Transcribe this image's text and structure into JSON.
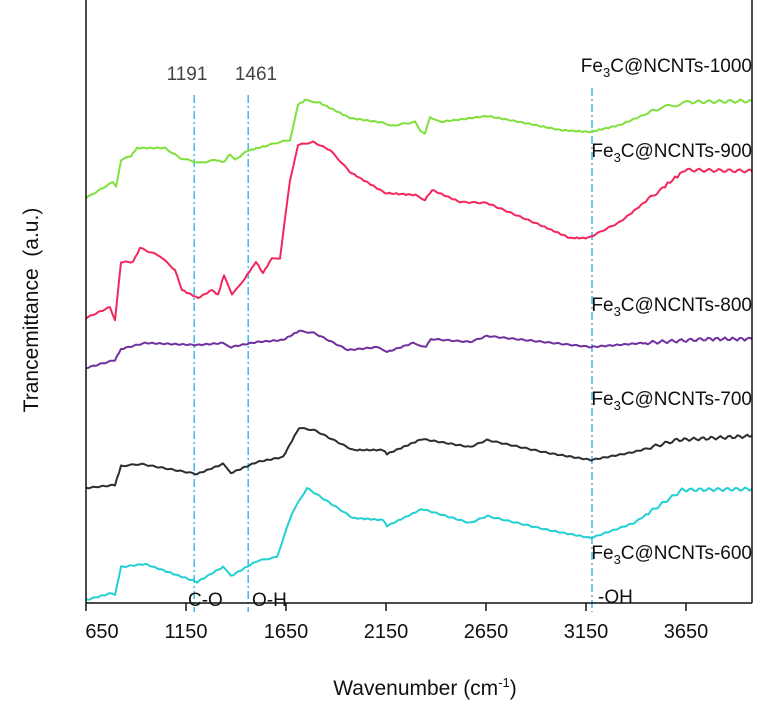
{
  "chart_data": {
    "type": "line",
    "title": "",
    "xlabel": "Wavenumber (cm",
    "xlabel_sup": "-1",
    "xlabel_close": ")",
    "ylabel": "Trancemittance  (a.u.)",
    "xlim": [
      650,
      3980
    ],
    "ylim": [
      0,
      595
    ],
    "xticks": [
      650,
      1150,
      1650,
      2150,
      2650,
      3150,
      3650
    ],
    "yticks": [],
    "grid": false,
    "reference_lines": [
      {
        "x": 1191,
        "label": "1191",
        "color": "#3ab8e6"
      },
      {
        "x": 1461,
        "label": "1461",
        "color": "#3ab8e6"
      },
      {
        "x": 3180,
        "label": "",
        "color": "#3ab8e6"
      }
    ],
    "annotations": [
      "C-O",
      "O-H",
      "-OH"
    ],
    "series": [
      {
        "name": "Fe3C@NCNTs-1000",
        "label_pre": "Fe",
        "label_sub": "3",
        "label_post": "C@NCNTs-1000",
        "color": "#7fe03c",
        "points": [
          [
            650,
            405
          ],
          [
            785,
            421
          ],
          [
            800,
            416
          ],
          [
            825,
            443
          ],
          [
            875,
            447
          ],
          [
            905,
            455
          ],
          [
            1045,
            455
          ],
          [
            1120,
            445
          ],
          [
            1220,
            440
          ],
          [
            1295,
            443
          ],
          [
            1340,
            441
          ],
          [
            1370,
            449
          ],
          [
            1395,
            443
          ],
          [
            1455,
            452
          ],
          [
            1545,
            457
          ],
          [
            1620,
            461
          ],
          [
            1670,
            463
          ],
          [
            1710,
            498
          ],
          [
            1745,
            503
          ],
          [
            1820,
            500
          ],
          [
            1970,
            485
          ],
          [
            2145,
            480
          ],
          [
            2170,
            477
          ],
          [
            2295,
            481
          ],
          [
            2320,
            473
          ],
          [
            2345,
            469
          ],
          [
            2370,
            486
          ],
          [
            2420,
            481
          ],
          [
            2655,
            487
          ],
          [
            2820,
            481
          ],
          [
            3020,
            473
          ],
          [
            3170,
            471
          ],
          [
            3320,
            478
          ],
          [
            3520,
            495
          ],
          [
            3670,
            501
          ],
          [
            3980,
            502
          ]
        ]
      },
      {
        "name": "Fe3C@NCNTs-900",
        "label_pre": "Fe",
        "label_sub": "3",
        "label_post": "C@NCNTs-900",
        "color": "#f2285c",
        "points": [
          [
            650,
            285
          ],
          [
            770,
            296
          ],
          [
            795,
            283
          ],
          [
            825,
            341
          ],
          [
            885,
            341
          ],
          [
            920,
            355
          ],
          [
            1020,
            347
          ],
          [
            1095,
            333
          ],
          [
            1130,
            313
          ],
          [
            1210,
            305
          ],
          [
            1280,
            313
          ],
          [
            1310,
            308
          ],
          [
            1340,
            328
          ],
          [
            1380,
            308
          ],
          [
            1445,
            325
          ],
          [
            1500,
            341
          ],
          [
            1535,
            330
          ],
          [
            1580,
            345
          ],
          [
            1620,
            345
          ],
          [
            1670,
            423
          ],
          [
            1710,
            458
          ],
          [
            1785,
            461
          ],
          [
            1870,
            453
          ],
          [
            1970,
            431
          ],
          [
            2120,
            413
          ],
          [
            2145,
            410
          ],
          [
            2295,
            408
          ],
          [
            2345,
            403
          ],
          [
            2380,
            413
          ],
          [
            2520,
            401
          ],
          [
            2655,
            400
          ],
          [
            2920,
            378
          ],
          [
            3070,
            365
          ],
          [
            3160,
            365
          ],
          [
            3320,
            381
          ],
          [
            3520,
            413
          ],
          [
            3645,
            433
          ],
          [
            3980,
            432
          ]
        ]
      },
      {
        "name": "Fe3C@NCNTs-800",
        "label_pre": "Fe",
        "label_sub": "3",
        "label_post": "C@NCNTs-800",
        "color": "#7030a0",
        "points": [
          [
            650,
            235
          ],
          [
            795,
            243
          ],
          [
            825,
            254
          ],
          [
            945,
            260
          ],
          [
            1205,
            258
          ],
          [
            1335,
            260
          ],
          [
            1375,
            256
          ],
          [
            1505,
            261
          ],
          [
            1635,
            263
          ],
          [
            1715,
            272
          ],
          [
            1790,
            270
          ],
          [
            1960,
            253
          ],
          [
            2115,
            256
          ],
          [
            2155,
            251
          ],
          [
            2285,
            260
          ],
          [
            2350,
            256
          ],
          [
            2375,
            264
          ],
          [
            2570,
            261
          ],
          [
            2655,
            267
          ],
          [
            3175,
            256
          ],
          [
            3435,
            260
          ],
          [
            3760,
            264
          ],
          [
            3980,
            264
          ]
        ]
      },
      {
        "name": "Fe3C@NCNTs-700",
        "label_pre": "Fe",
        "label_sub": "3",
        "label_post": "C@NCNTs-700",
        "color": "#2b2d33",
        "points": [
          [
            650,
            115
          ],
          [
            795,
            118
          ],
          [
            825,
            137
          ],
          [
            925,
            139
          ],
          [
            1205,
            129
          ],
          [
            1335,
            139
          ],
          [
            1375,
            130
          ],
          [
            1505,
            141
          ],
          [
            1635,
            146
          ],
          [
            1715,
            175
          ],
          [
            1790,
            173
          ],
          [
            1985,
            153
          ],
          [
            2135,
            153
          ],
          [
            2155,
            149
          ],
          [
            2330,
            164
          ],
          [
            2570,
            156
          ],
          [
            2655,
            163
          ],
          [
            2960,
            150
          ],
          [
            3175,
            143
          ],
          [
            3390,
            151
          ],
          [
            3605,
            163
          ],
          [
            3980,
            167
          ]
        ]
      },
      {
        "name": "Fe3C@NCNTs-600",
        "label_pre": "Fe",
        "label_sub": "3",
        "label_post": "C@NCNTs-600",
        "color": "#22d0d2",
        "points": [
          [
            650,
            3
          ],
          [
            780,
            10
          ],
          [
            795,
            8
          ],
          [
            825,
            36
          ],
          [
            945,
            39
          ],
          [
            1205,
            21
          ],
          [
            1335,
            36
          ],
          [
            1375,
            27
          ],
          [
            1505,
            42
          ],
          [
            1605,
            46
          ],
          [
            1680,
            90
          ],
          [
            1755,
            115
          ],
          [
            1985,
            85
          ],
          [
            2135,
            83
          ],
          [
            2155,
            77
          ],
          [
            2330,
            94
          ],
          [
            2570,
            80
          ],
          [
            2655,
            87
          ],
          [
            2960,
            73
          ],
          [
            3175,
            65
          ],
          [
            3390,
            80
          ],
          [
            3630,
            113
          ],
          [
            3980,
            114
          ]
        ]
      }
    ]
  }
}
